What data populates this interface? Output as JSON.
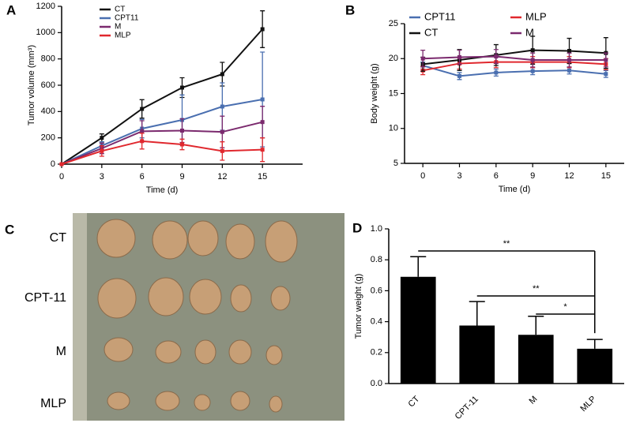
{
  "panel_labels": [
    "A",
    "B",
    "C",
    "D"
  ],
  "photo_panel": {
    "rows": [
      "CT",
      "CPT-11",
      "M",
      "MLP"
    ]
  },
  "chart_data": [
    {
      "type": "line",
      "x_label": "Time (d)",
      "y_label": "Tumor volume (mm³)",
      "x": [
        0,
        3,
        6,
        9,
        12,
        15
      ],
      "xlim": [
        0,
        18
      ],
      "xticks": [
        0,
        3,
        6,
        9,
        12,
        15
      ],
      "ylim": [
        0,
        1200
      ],
      "yticks": [
        0,
        200,
        400,
        600,
        800,
        1000,
        1200
      ],
      "legend": "upper left",
      "series": [
        {
          "name": "CT",
          "color": "#111111",
          "values": [
            0,
            200,
            420,
            582,
            684,
            1026
          ],
          "errors": [
            0,
            30,
            70,
            75,
            90,
            140
          ]
        },
        {
          "name": "CPT11",
          "color": "#4a6fb0",
          "values": [
            0,
            140,
            270,
            336,
            438,
            492
          ],
          "errors": [
            0,
            30,
            70,
            190,
            180,
            360
          ]
        },
        {
          "name": "M",
          "color": "#7b2a6e",
          "values": [
            0,
            120,
            250,
            255,
            245,
            320
          ],
          "errors": [
            0,
            40,
            80,
            90,
            120,
            120
          ]
        },
        {
          "name": "MLP",
          "color": "#e0282e",
          "values": [
            0,
            100,
            175,
            150,
            100,
            110
          ],
          "errors": [
            0,
            40,
            60,
            40,
            70,
            90
          ]
        }
      ]
    },
    {
      "type": "line",
      "x_label": "Time (d)",
      "y_label": "Body weight (g)",
      "x": [
        0,
        3,
        6,
        9,
        12,
        15
      ],
      "xlim": [
        -1.5,
        16.5
      ],
      "xticks": [
        0,
        3,
        6,
        9,
        12,
        15
      ],
      "ylim": [
        5,
        25
      ],
      "yticks": [
        5,
        10,
        15,
        20,
        25
      ],
      "legend": "upper center",
      "legend_columns": 2,
      "series": [
        {
          "name": "CPT11",
          "color": "#4a6fb0",
          "values": [
            19,
            17.5,
            18,
            18.2,
            18.3,
            17.8
          ],
          "errors": [
            0.5,
            0.5,
            0.5,
            0.5,
            0.5,
            0.5
          ]
        },
        {
          "name": "MLP",
          "color": "#e0282e",
          "values": [
            18.3,
            19.3,
            19.5,
            19.5,
            19.5,
            19.2
          ],
          "errors": [
            0.6,
            0.8,
            0.8,
            0.8,
            0.8,
            0.8
          ]
        },
        {
          "name": "CT",
          "color": "#111111",
          "values": [
            19.2,
            19.8,
            20.5,
            21.2,
            21.1,
            20.8
          ],
          "errors": [
            1,
            1.5,
            1.5,
            2,
            1.8,
            2.2
          ]
        },
        {
          "name": "M",
          "color": "#7b2a6e",
          "values": [
            20,
            20.2,
            20.3,
            19.8,
            19.8,
            19.8
          ],
          "errors": [
            1.2,
            1,
            1,
            1,
            1,
            1
          ]
        }
      ]
    },
    {
      "type": "bar",
      "y_label": "Tumor weight (g)",
      "color": "#000000",
      "categories": [
        "CT",
        "CPT-11",
        "M",
        "MLP"
      ],
      "values": [
        0.69,
        0.375,
        0.315,
        0.225
      ],
      "errors": [
        0.13,
        0.155,
        0.12,
        0.06
      ],
      "ylim": [
        0,
        1
      ],
      "yticks": [
        {
          "value": 0,
          "label": "0.0"
        },
        0.2,
        0.4,
        0.6,
        0.8,
        {
          "value": 1,
          "label": "1.0"
        }
      ],
      "annotations": [
        {
          "text": "**",
          "between": [
            "CT",
            "MLP"
          ]
        },
        {
          "text": "**",
          "between": [
            "CPT-11",
            "MLP"
          ]
        },
        {
          "text": "*",
          "between": [
            "M",
            "MLP"
          ]
        }
      ]
    }
  ]
}
